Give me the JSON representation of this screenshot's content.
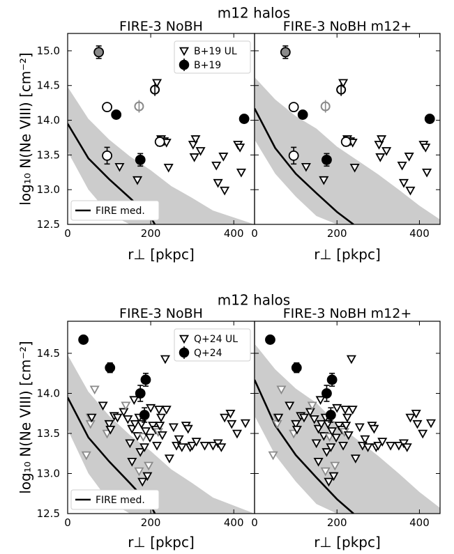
{
  "figure": {
    "rows": [
      {
        "suptitle": "m12 halos",
        "ylabel": "log₁₀ N(Ne VIII) [cm⁻²]",
        "xlabel": "r⊥ [pkpc]",
        "legend_ul": "B+19 UL",
        "legend_det": "B+19",
        "legend_med": "FIRE med.",
        "yticks": [
          "12.5",
          "13.0",
          "13.5",
          "14.0",
          "14.5",
          "15.0"
        ],
        "xticks": [
          "0",
          "200",
          "400"
        ],
        "panel_titles": [
          "FIRE-3 NoBH",
          "FIRE-3 NoBH m12+"
        ]
      },
      {
        "suptitle": "m12 halos",
        "ylabel": "log₁₀ N(Ne VIII) [cm⁻²]",
        "xlabel": "r⊥ [pkpc]",
        "legend_ul": "Q+24 UL",
        "legend_det": "Q+24",
        "legend_med": "FIRE med.",
        "yticks": [
          "12.5",
          "13.0",
          "13.5",
          "14.0",
          "14.5"
        ],
        "xticks": [
          "0",
          "200",
          "400"
        ],
        "panel_titles": [
          "FIRE-3 NoBH",
          "FIRE-3 NoBH m12+"
        ]
      }
    ]
  },
  "chart_data": [
    {
      "type": "scatter",
      "title": "m12 halos",
      "panels": [
        "FIRE-3 NoBH",
        "FIRE-3 NoBH m12+"
      ],
      "xlabel": "r⊥ [pkpc]",
      "ylabel": "log₁₀ N(Ne VIII) [cm⁻²]",
      "xlim": [
        0,
        450
      ],
      "ylim": [
        12.5,
        15.25
      ],
      "xticks": [
        0,
        200,
        400
      ],
      "yticks": [
        12.5,
        13.0,
        13.5,
        14.0,
        14.5,
        15.0
      ],
      "legend_position": "top-right",
      "colors": {
        "band": "#cccccc",
        "gray_marker": "#8a8a8a",
        "black": "#000000"
      },
      "observations": {
        "upper_limits_name": "B+19 UL",
        "detections_name": "B+19",
        "upper_limits": [
          {
            "x": 125,
            "y": 13.33,
            "gray": false
          },
          {
            "x": 168,
            "y": 13.14,
            "gray": false
          },
          {
            "x": 172,
            "y": 14.2,
            "gray": true,
            "open_circle": true
          },
          {
            "x": 210,
            "y": 14.44,
            "open_circle": true
          },
          {
            "x": 215,
            "y": 14.54
          },
          {
            "x": 225,
            "y": 13.73
          },
          {
            "x": 232,
            "y": 13.7
          },
          {
            "x": 238,
            "y": 13.68
          },
          {
            "x": 243,
            "y": 13.32
          },
          {
            "x": 302,
            "y": 13.65
          },
          {
            "x": 308,
            "y": 13.73
          },
          {
            "x": 305,
            "y": 13.47
          },
          {
            "x": 320,
            "y": 13.56
          },
          {
            "x": 358,
            "y": 13.35
          },
          {
            "x": 362,
            "y": 13.1
          },
          {
            "x": 378,
            "y": 12.99
          },
          {
            "x": 375,
            "y": 13.48
          },
          {
            "x": 410,
            "y": 13.65
          },
          {
            "x": 415,
            "y": 13.61
          },
          {
            "x": 418,
            "y": 13.25
          }
        ],
        "detections": [
          {
            "x": 75,
            "y": 14.98,
            "yerr": 0.09,
            "style": "gray"
          },
          {
            "x": 95,
            "y": 14.19,
            "yerr": 0.05,
            "style": "open"
          },
          {
            "x": 117,
            "y": 14.08,
            "yerr": 0,
            "style": "filled"
          },
          {
            "x": 95,
            "y": 13.49,
            "yerr": 0.12,
            "style": "open"
          },
          {
            "x": 175,
            "y": 13.43,
            "yerr": 0.09,
            "style": "filled"
          },
          {
            "x": 222,
            "y": 13.69,
            "yerr": 0.06,
            "style": "open"
          },
          {
            "x": 425,
            "y": 14.02,
            "yerr": 0,
            "style": "filled"
          }
        ]
      },
      "fire_median": {
        "name": "FIRE med.",
        "panel1": {
          "x": [
            0,
            50,
            100,
            150,
            200,
            210
          ],
          "y": [
            13.95,
            13.45,
            13.15,
            12.88,
            12.6,
            12.5
          ]
        },
        "panel2": {
          "x": [
            0,
            50,
            100,
            150,
            200,
            240
          ],
          "y": [
            14.17,
            13.6,
            13.23,
            12.95,
            12.68,
            12.5
          ]
        }
      },
      "fire_band": {
        "panel1": {
          "x": [
            0,
            50,
            100,
            150,
            200,
            250,
            300,
            350,
            450
          ],
          "upper": [
            14.48,
            14.02,
            13.72,
            13.48,
            13.28,
            13.05,
            12.88,
            12.7,
            12.5
          ],
          "lower": [
            13.55,
            13.0,
            12.65,
            12.5,
            12.5,
            12.5,
            12.5,
            12.5,
            12.5
          ]
        },
        "panel2": {
          "x": [
            0,
            50,
            100,
            150,
            200,
            250,
            300,
            350,
            400,
            450
          ],
          "upper": [
            14.62,
            14.3,
            14.06,
            13.88,
            13.62,
            13.42,
            13.22,
            13.0,
            12.77,
            12.57
          ],
          "lower": [
            13.72,
            13.23,
            12.9,
            12.62,
            12.5,
            12.5,
            12.5,
            12.5,
            12.5,
            12.5
          ]
        }
      }
    },
    {
      "type": "scatter",
      "title": "m12 halos",
      "panels": [
        "FIRE-3 NoBH",
        "FIRE-3 NoBH m12+"
      ],
      "xlabel": "r⊥ [pkpc]",
      "ylabel": "log₁₀ N(Ne VIII) [cm⁻²]",
      "xlim": [
        0,
        450
      ],
      "ylim": [
        12.5,
        14.9
      ],
      "xticks": [
        0,
        200,
        400
      ],
      "yticks": [
        12.5,
        13.0,
        13.5,
        14.0,
        14.5
      ],
      "legend_position": "top-right",
      "colors": {
        "band": "#cccccc",
        "gray_marker": "#8a8a8a",
        "black": "#000000"
      },
      "observations": {
        "upper_limits_name": "Q+24 UL",
        "detections_name": "Q+24",
        "upper_limits": [
          {
            "x": 45,
            "y": 13.23,
            "gray": true
          },
          {
            "x": 55,
            "y": 13.62,
            "gray": true
          },
          {
            "x": 55,
            "y": 13.7,
            "gray": true
          },
          {
            "x": 58,
            "y": 13.7
          },
          {
            "x": 65,
            "y": 14.05,
            "gray": true
          },
          {
            "x": 85,
            "y": 13.85
          },
          {
            "x": 95,
            "y": 13.5,
            "gray": true
          },
          {
            "x": 100,
            "y": 13.62
          },
          {
            "x": 103,
            "y": 13.55
          },
          {
            "x": 112,
            "y": 13.72
          },
          {
            "x": 120,
            "y": 13.7
          },
          {
            "x": 135,
            "y": 13.77
          },
          {
            "x": 140,
            "y": 13.85,
            "gray": true
          },
          {
            "x": 145,
            "y": 13.68
          },
          {
            "x": 150,
            "y": 13.38
          },
          {
            "x": 155,
            "y": 13.15
          },
          {
            "x": 155,
            "y": 13.56
          },
          {
            "x": 160,
            "y": 13.92
          },
          {
            "x": 162,
            "y": 13.62
          },
          {
            "x": 168,
            "y": 13.47
          },
          {
            "x": 172,
            "y": 13.03,
            "gray": true
          },
          {
            "x": 172,
            "y": 13.7
          },
          {
            "x": 175,
            "y": 13.27
          },
          {
            "x": 178,
            "y": 13.62
          },
          {
            "x": 180,
            "y": 12.9
          },
          {
            "x": 182,
            "y": 13.46,
            "gray": true
          },
          {
            "x": 185,
            "y": 13.33
          },
          {
            "x": 188,
            "y": 13.53
          },
          {
            "x": 192,
            "y": 12.97
          },
          {
            "x": 195,
            "y": 13.1,
            "gray": true
          },
          {
            "x": 198,
            "y": 13.45
          },
          {
            "x": 200,
            "y": 13.82
          },
          {
            "x": 205,
            "y": 13.6
          },
          {
            "x": 212,
            "y": 13.55
          },
          {
            "x": 215,
            "y": 13.35
          },
          {
            "x": 218,
            "y": 13.52,
            "gray": true
          },
          {
            "x": 220,
            "y": 13.8
          },
          {
            "x": 222,
            "y": 13.6
          },
          {
            "x": 225,
            "y": 13.7
          },
          {
            "x": 228,
            "y": 13.48
          },
          {
            "x": 235,
            "y": 14.43
          },
          {
            "x": 238,
            "y": 13.8
          },
          {
            "x": 245,
            "y": 13.19
          },
          {
            "x": 255,
            "y": 13.58
          },
          {
            "x": 262,
            "y": 13.35
          },
          {
            "x": 268,
            "y": 13.43
          },
          {
            "x": 275,
            "y": 13.33
          },
          {
            "x": 285,
            "y": 13.6
          },
          {
            "x": 290,
            "y": 13.56
          },
          {
            "x": 295,
            "y": 13.33
          },
          {
            "x": 300,
            "y": 13.35
          },
          {
            "x": 310,
            "y": 13.4
          },
          {
            "x": 330,
            "y": 13.35
          },
          {
            "x": 350,
            "y": 13.35
          },
          {
            "x": 362,
            "y": 13.38
          },
          {
            "x": 370,
            "y": 13.33
          },
          {
            "x": 378,
            "y": 13.7
          },
          {
            "x": 392,
            "y": 13.75
          },
          {
            "x": 395,
            "y": 13.62
          },
          {
            "x": 408,
            "y": 13.5
          },
          {
            "x": 428,
            "y": 13.63
          }
        ],
        "detections": [
          {
            "x": 38,
            "y": 14.67,
            "yerr": 0,
            "style": "filled"
          },
          {
            "x": 102,
            "y": 14.32,
            "yerr": 0.06,
            "style": "filled"
          },
          {
            "x": 175,
            "y": 14.0,
            "yerr": 0.1,
            "style": "filled"
          },
          {
            "x": 188,
            "y": 14.17,
            "yerr": 0.08,
            "style": "filled"
          },
          {
            "x": 185,
            "y": 13.73,
            "yerr": 0.09,
            "style": "filled"
          }
        ]
      },
      "fire_median": {
        "name": "FIRE med.",
        "panel1": {
          "x": [
            0,
            50,
            100,
            150,
            200,
            210
          ],
          "y": [
            13.95,
            13.45,
            13.15,
            12.88,
            12.6,
            12.5
          ]
        },
        "panel2": {
          "x": [
            0,
            50,
            100,
            150,
            200,
            240
          ],
          "y": [
            14.17,
            13.6,
            13.23,
            12.95,
            12.68,
            12.5
          ]
        }
      },
      "fire_band": {
        "panel1": {
          "x": [
            0,
            50,
            100,
            150,
            200,
            250,
            300,
            350,
            450
          ],
          "upper": [
            14.48,
            14.02,
            13.72,
            13.48,
            13.28,
            13.05,
            12.88,
            12.7,
            12.5
          ],
          "lower": [
            13.55,
            13.0,
            12.65,
            12.5,
            12.5,
            12.5,
            12.5,
            12.5,
            12.5
          ]
        },
        "panel2": {
          "x": [
            0,
            50,
            100,
            150,
            200,
            250,
            300,
            350,
            400,
            450
          ],
          "upper": [
            14.62,
            14.3,
            14.06,
            13.88,
            13.62,
            13.42,
            13.22,
            13.0,
            12.77,
            12.57
          ],
          "lower": [
            13.72,
            13.23,
            12.9,
            12.62,
            12.5,
            12.5,
            12.5,
            12.5,
            12.5,
            12.5
          ]
        }
      }
    }
  ]
}
